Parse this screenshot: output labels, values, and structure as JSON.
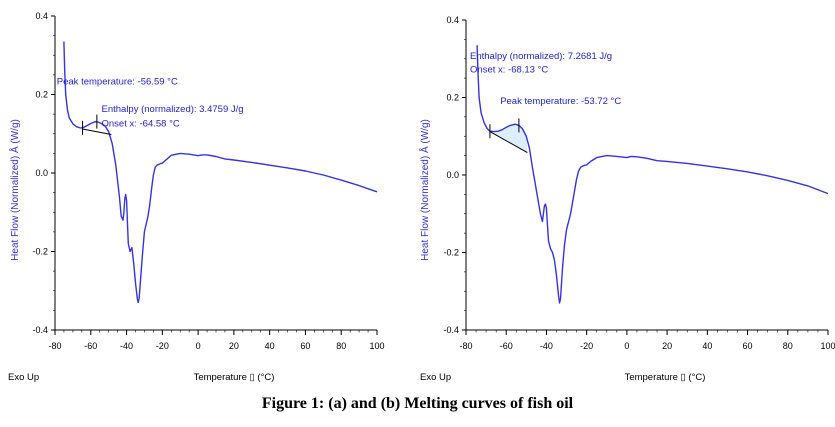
{
  "caption": "Figure 1: (a) and (b) Melting curves of fish oil",
  "colors": {
    "curve": "#3333e0",
    "annotation": "#2222cc",
    "axis": "#000000",
    "fill": "#ddeeff"
  },
  "chart_data": [
    {
      "type": "line",
      "id": "a",
      "xlabel": "Temperature ▯ (°C)",
      "ylabel": "Heat Flow (Normalized) Å (W/g)",
      "corner_label": "Exo Up",
      "xlim": [
        -80,
        100
      ],
      "ylim": [
        -0.4,
        0.4
      ],
      "xticks": [
        "-80",
        "-60",
        "-40",
        "-20",
        "0",
        "20",
        "40",
        "60",
        "80",
        "100"
      ],
      "yticks": [
        "0.4",
        "0.2",
        "0.0",
        "-0.2",
        "-0.4"
      ],
      "series": [
        {
          "x": [
            -75,
            -74.6,
            -74,
            -73,
            -72,
            -70,
            -68,
            -66,
            -64.6,
            -62,
            -60,
            -58,
            -56.6,
            -54,
            -52,
            -50,
            -48,
            -46,
            -44,
            -43,
            -42,
            -41.5,
            -41,
            -40.5,
            -40,
            -39.5,
            -39,
            -38,
            -37,
            -36,
            -35,
            -34,
            -33.5,
            -33,
            -32.5,
            -32,
            -31,
            -30,
            -29,
            -28,
            -27,
            -26,
            -25,
            -24,
            -23,
            -22,
            -21,
            -20,
            -18,
            -15,
            -10,
            -5,
            0,
            2,
            5,
            10,
            15,
            20,
            30,
            40,
            50,
            60,
            70,
            80,
            90,
            100
          ],
          "y": [
            0.335,
            0.26,
            0.2,
            0.16,
            0.14,
            0.125,
            0.118,
            0.115,
            0.115,
            0.121,
            0.126,
            0.13,
            0.131,
            0.126,
            0.12,
            0.105,
            0.075,
            0.02,
            -0.06,
            -0.11,
            -0.12,
            -0.1,
            -0.065,
            -0.055,
            -0.07,
            -0.13,
            -0.18,
            -0.2,
            -0.19,
            -0.23,
            -0.28,
            -0.32,
            -0.33,
            -0.32,
            -0.29,
            -0.26,
            -0.2,
            -0.15,
            -0.13,
            -0.11,
            -0.08,
            -0.04,
            -0.005,
            0.015,
            0.02,
            0.022,
            0.024,
            0.025,
            0.033,
            0.045,
            0.05,
            0.048,
            0.044,
            0.046,
            0.046,
            0.042,
            0.036,
            0.033,
            0.027,
            0.02,
            0.013,
            0.005,
            -0.005,
            -0.018,
            -0.032,
            -0.048
          ]
        }
      ],
      "baseline": {
        "x": [
          -64.6,
          -48.5
        ],
        "y": [
          0.112,
          0.098
        ]
      },
      "markers": [
        {
          "x": -64.6,
          "y": 0.115
        },
        {
          "x": -56.6,
          "y": 0.131
        }
      ],
      "annotations": [
        {
          "text": "Peak temperature: -56.59 °C",
          "x": -79,
          "y": 0.225
        },
        {
          "text": "Enthalpy (normalized): 3.4759 J/g",
          "x": -54,
          "y": 0.155
        },
        {
          "text": "Onset x: -64.58 °C",
          "x": -54,
          "y": 0.118
        }
      ]
    },
    {
      "type": "line",
      "id": "b",
      "xlabel": "Temperature ▯ (°C)",
      "ylabel": "Heat Flow (Normalized) Å (W/g)",
      "corner_label": "Exo Up",
      "xlim": [
        -80,
        100
      ],
      "ylim": [
        -0.4,
        0.4
      ],
      "xticks": [
        "-80",
        "-60",
        "-40",
        "-20",
        "0",
        "20",
        "40",
        "60",
        "80",
        "100"
      ],
      "yticks": [
        "0.4",
        "0.2",
        "0.0",
        "-0.2",
        "-0.4"
      ],
      "series": [
        {
          "x": [
            -74.5,
            -74.1,
            -73.5,
            -72.5,
            -71,
            -69.5,
            -68.1,
            -66,
            -64,
            -62,
            -60,
            -58,
            -55.5,
            -53.7,
            -52,
            -50,
            -48.5,
            -47,
            -45,
            -43,
            -42,
            -41.5,
            -41,
            -40.5,
            -40,
            -39.5,
            -39,
            -38,
            -37,
            -36,
            -35,
            -34,
            -33.5,
            -33,
            -32.5,
            -32,
            -31,
            -30,
            -29,
            -28,
            -27,
            -26,
            -25,
            -24,
            -23,
            -22,
            -21,
            -20,
            -18,
            -15,
            -10,
            -5,
            0,
            2,
            5,
            10,
            15,
            20,
            30,
            40,
            50,
            60,
            70,
            80,
            90,
            100
          ],
          "y": [
            0.335,
            0.27,
            0.2,
            0.16,
            0.135,
            0.12,
            0.113,
            0.112,
            0.113,
            0.117,
            0.123,
            0.128,
            0.131,
            0.128,
            0.12,
            0.1,
            0.07,
            0.02,
            -0.04,
            -0.1,
            -0.12,
            -0.1,
            -0.08,
            -0.075,
            -0.085,
            -0.13,
            -0.17,
            -0.19,
            -0.2,
            -0.22,
            -0.26,
            -0.31,
            -0.33,
            -0.32,
            -0.28,
            -0.24,
            -0.18,
            -0.14,
            -0.12,
            -0.1,
            -0.07,
            -0.04,
            -0.01,
            0.01,
            0.02,
            0.023,
            0.025,
            0.026,
            0.035,
            0.045,
            0.05,
            0.048,
            0.045,
            0.048,
            0.047,
            0.043,
            0.037,
            0.035,
            0.03,
            0.023,
            0.016,
            0.008,
            -0.002,
            -0.014,
            -0.028,
            -0.048
          ]
        }
      ],
      "baseline": {
        "x": [
          -68.1,
          -49.5
        ],
        "y": [
          0.112,
          0.058
        ]
      },
      "fill_region": {
        "x_from": -68.1,
        "x_to": -49.5
      },
      "markers": [
        {
          "x": -68.1,
          "y": 0.113
        },
        {
          "x": -53.7,
          "y": 0.128
        }
      ],
      "annotations": [
        {
          "text": "Enthalpy (normalized): 7.2681 J/g",
          "x": -78,
          "y": 0.3
        },
        {
          "text": "Onset x: -68.13 °C",
          "x": -78,
          "y": 0.264
        },
        {
          "text": "Peak temperature: -53.72 °C",
          "x": -63,
          "y": 0.183
        }
      ]
    }
  ]
}
